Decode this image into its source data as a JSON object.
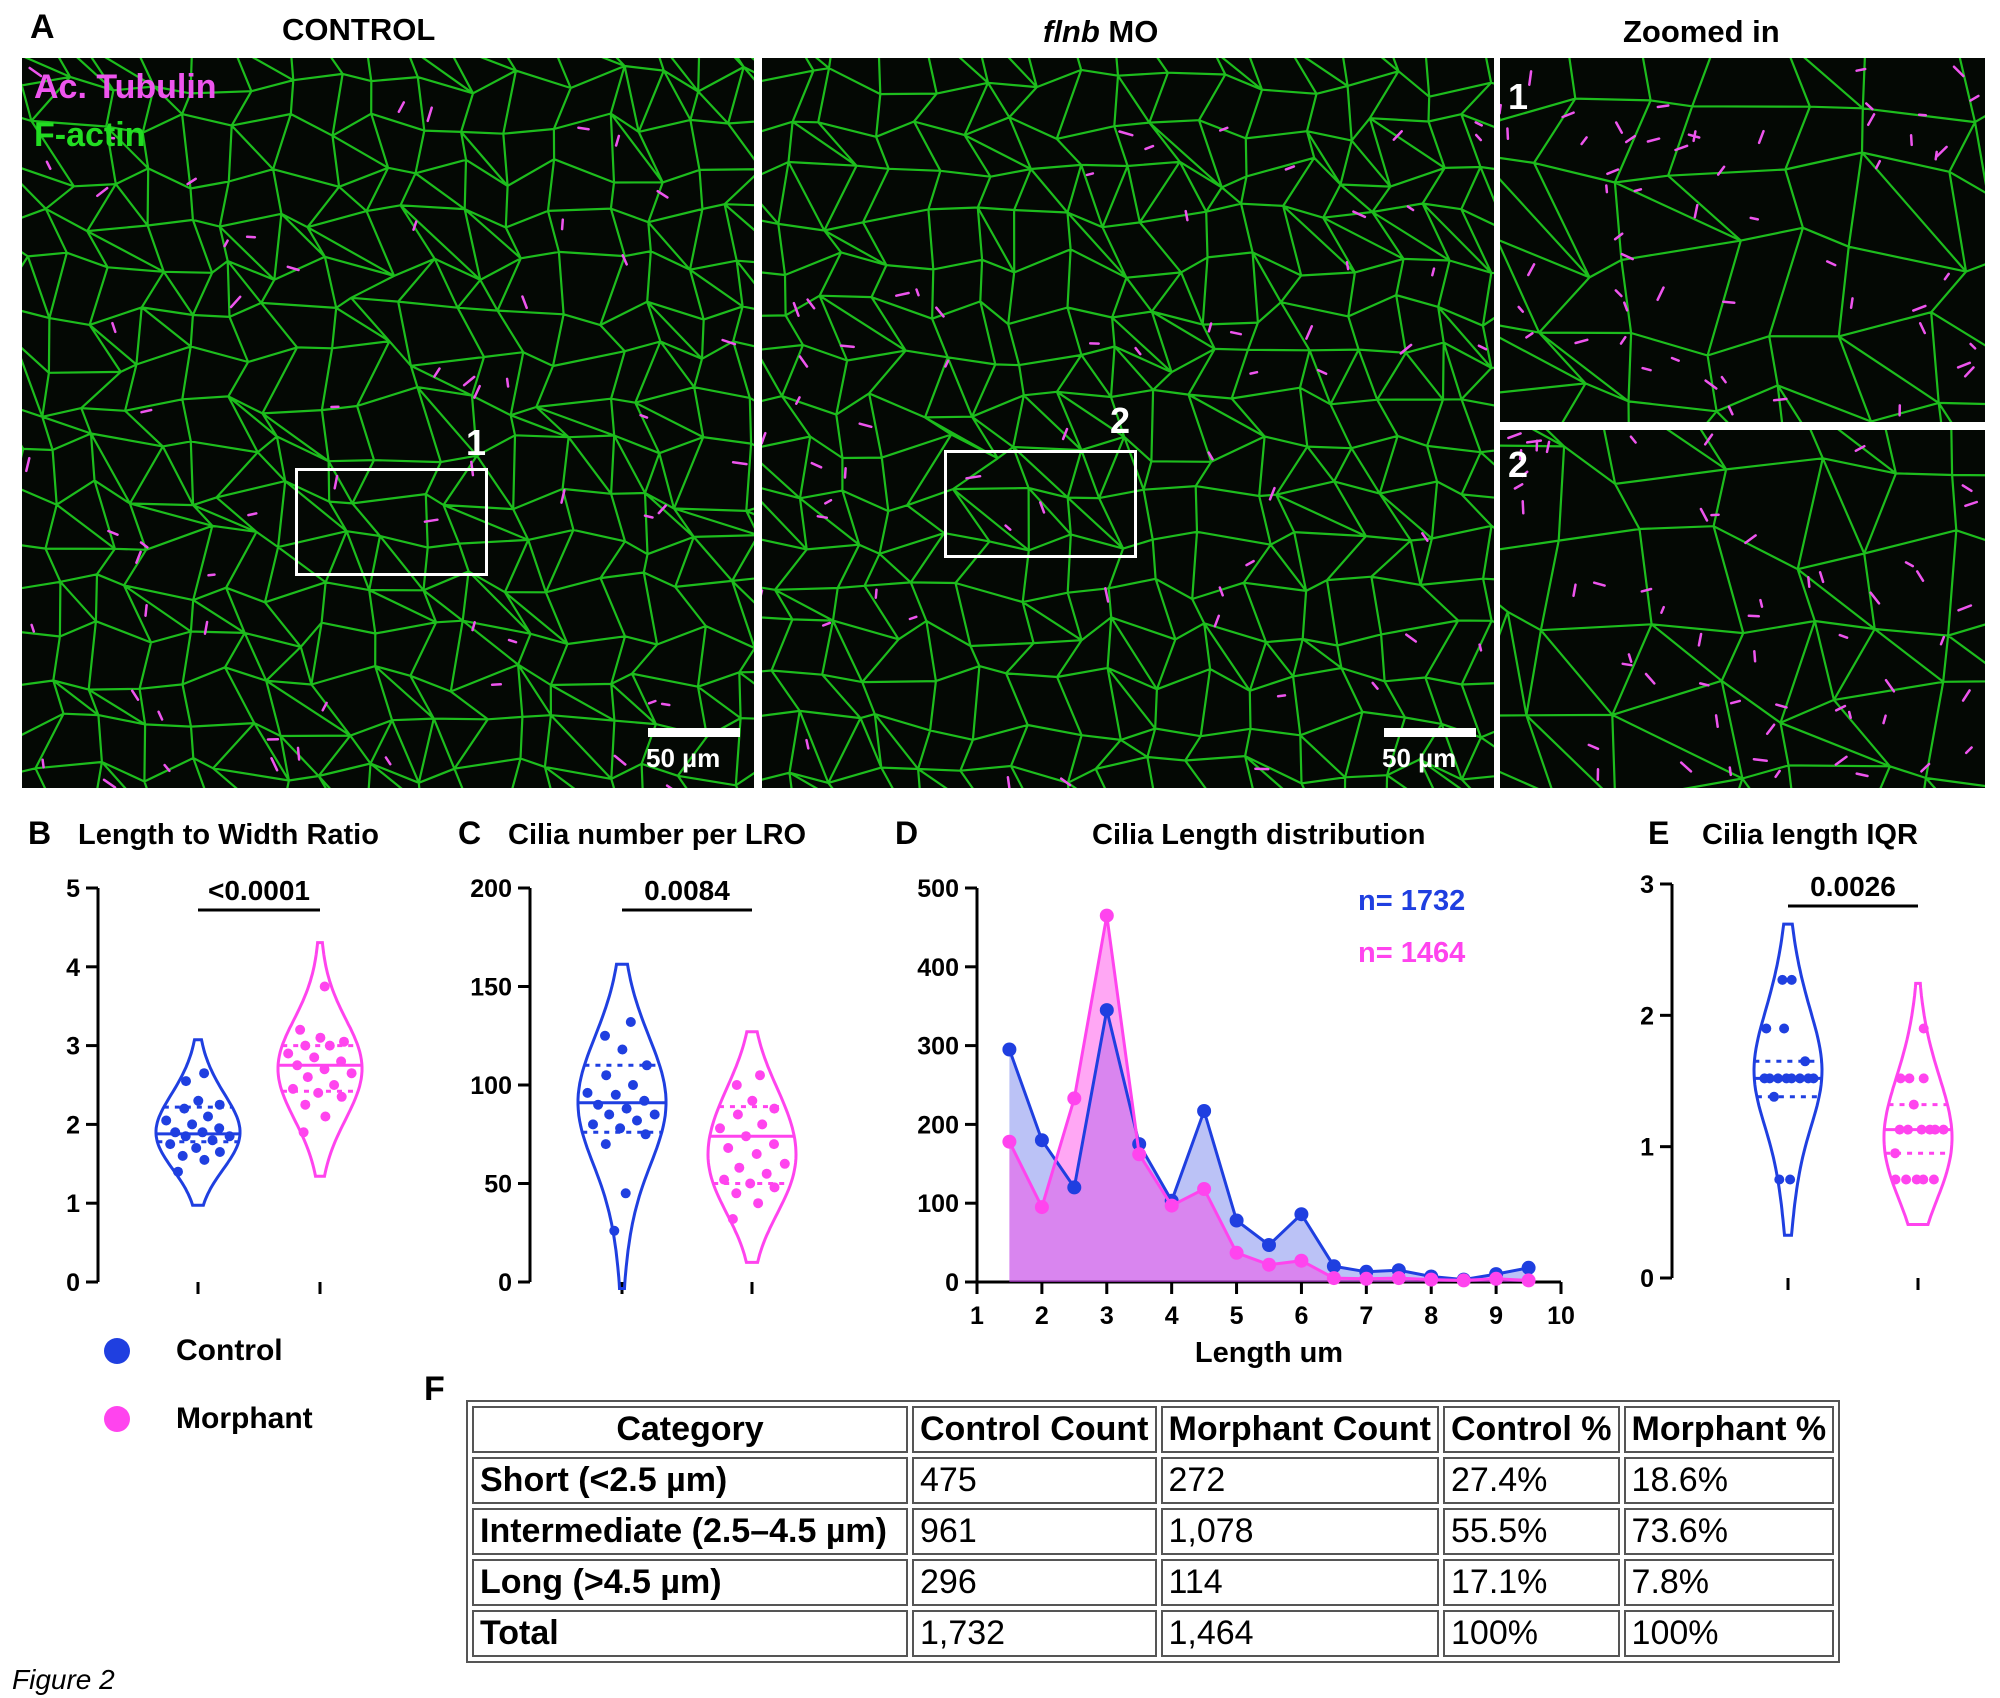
{
  "figure": {
    "caption": "Figure 2",
    "panel_A": {
      "label": "A",
      "control_title": "CONTROL",
      "morphant_title_gene": "flnb",
      "morphant_title_suffix": " MO",
      "zoom_title": "Zoomed in",
      "channel_1": "Ac. Tubulin",
      "channel_2": "F-actin",
      "scalebar_text": "50 µm",
      "roi_1": "1",
      "roi_2": "2",
      "zoom_1": "1",
      "zoom_2": "2",
      "colors": {
        "tubulin": "#ee55ee",
        "actin": "#22dd22"
      }
    },
    "legend": {
      "items": [
        {
          "label": "Control",
          "color": "#1f3fe0"
        },
        {
          "label": "Morphant",
          "color": "#ff44ee"
        }
      ]
    },
    "table_F": {
      "label": "F",
      "headers": [
        "Category",
        "Control Count",
        "Morphant Count",
        "Control %",
        "Morphant %"
      ],
      "rows": [
        [
          "Short (<2.5 µm)",
          "475",
          "272",
          "27.4%",
          "18.6%"
        ],
        [
          "Intermediate (2.5–4.5 µm)",
          "961",
          "1,078",
          "55.5%",
          "73.6%"
        ],
        [
          "Long (>4.5 µm)",
          "296",
          "114",
          "17.1%",
          "7.8%"
        ],
        [
          "Total",
          "1,732",
          "1,464",
          "100%",
          "100%"
        ]
      ]
    }
  },
  "chart_data": [
    {
      "id": "B",
      "label": "B",
      "type": "violin",
      "title": "Length to Width Ratio",
      "ylim": [
        0,
        5
      ],
      "yticks": [
        0,
        1,
        2,
        3,
        4,
        5
      ],
      "significance": "<0.0001",
      "series": [
        {
          "name": "Control",
          "color": "#1f3fe0",
          "quartiles": [
            1.78,
            1.88,
            2.22
          ],
          "points": [
            1.4,
            1.55,
            1.65,
            1.7,
            1.75,
            1.8,
            1.85,
            1.9,
            1.95,
            2.0,
            2.05,
            2.1,
            2.2,
            2.25,
            2.3,
            2.55,
            2.65,
            1.85,
            1.6,
            1.9
          ]
        },
        {
          "name": "Morphant",
          "color": "#ff44ee",
          "quartiles": [
            2.42,
            2.75,
            3.0
          ],
          "points": [
            1.9,
            2.1,
            2.25,
            2.4,
            2.5,
            2.6,
            2.7,
            2.75,
            2.8,
            2.9,
            3.0,
            3.05,
            3.1,
            3.2,
            3.75,
            2.45,
            2.65,
            2.85,
            3.0,
            2.35
          ]
        }
      ]
    },
    {
      "id": "C",
      "label": "C",
      "type": "violin",
      "title": "Cilia number per LRO",
      "ylim": [
        0,
        200
      ],
      "yticks": [
        0,
        50,
        100,
        150,
        200
      ],
      "significance": "0.0084",
      "series": [
        {
          "name": "Control",
          "color": "#1f3fe0",
          "quartiles": [
            76,
            91,
            110
          ],
          "points": [
            26,
            45,
            70,
            75,
            78,
            80,
            82,
            85,
            88,
            90,
            92,
            95,
            100,
            105,
            110,
            118,
            125,
            132,
            85,
            96
          ]
        },
        {
          "name": "Morphant",
          "color": "#ff44ee",
          "quartiles": [
            50,
            74,
            89
          ],
          "points": [
            32,
            40,
            45,
            48,
            50,
            52,
            55,
            60,
            65,
            70,
            74,
            78,
            80,
            85,
            88,
            92,
            100,
            105,
            58,
            68
          ]
        }
      ]
    },
    {
      "id": "D",
      "label": "D",
      "type": "area",
      "title": "Cilia Length distribution",
      "xlabel": "Length um",
      "xlim": [
        1,
        10
      ],
      "ylim": [
        0,
        500
      ],
      "xticks": [
        1,
        2,
        3,
        4,
        5,
        6,
        7,
        8,
        9,
        10
      ],
      "yticks": [
        0,
        100,
        200,
        300,
        400,
        500
      ],
      "annotations": [
        "n= 1732",
        "n= 1464"
      ],
      "x": [
        1.5,
        2,
        2.5,
        3,
        3.5,
        4,
        4.5,
        5,
        5.5,
        6,
        6.5,
        7,
        7.5,
        8,
        8.5,
        9,
        9.5
      ],
      "series": [
        {
          "name": "Control",
          "color": "#1f3fe0",
          "values": [
            295,
            180,
            120,
            345,
            175,
            103,
            217,
            78,
            47,
            86,
            20,
            13,
            15,
            7,
            3,
            10,
            18
          ]
        },
        {
          "name": "Morphant",
          "color": "#ff44ee",
          "values": [
            178,
            95,
            233,
            465,
            162,
            97,
            118,
            37,
            22,
            27,
            5,
            4,
            5,
            3,
            2,
            4,
            2
          ]
        }
      ]
    },
    {
      "id": "E",
      "label": "E",
      "type": "violin",
      "title": "Cilia length IQR",
      "ylim": [
        0,
        3
      ],
      "yticks": [
        0,
        1,
        2,
        3
      ],
      "significance": "0.0026",
      "series": [
        {
          "name": "Control",
          "color": "#1f3fe0",
          "quartiles": [
            1.38,
            1.52,
            1.65
          ],
          "points": [
            0.75,
            0.75,
            1.52,
            1.52,
            1.52,
            1.52,
            1.52,
            1.52,
            1.52,
            1.52,
            1.9,
            1.9,
            2.27,
            2.27,
            1.38,
            1.65
          ]
        },
        {
          "name": "Morphant",
          "color": "#ff44ee",
          "quartiles": [
            0.95,
            1.13,
            1.32
          ],
          "points": [
            0.75,
            0.75,
            0.75,
            0.75,
            0.75,
            1.13,
            1.13,
            1.13,
            1.13,
            1.13,
            1.13,
            1.52,
            1.52,
            1.52,
            1.9,
            0.95,
            1.32
          ]
        }
      ]
    }
  ]
}
